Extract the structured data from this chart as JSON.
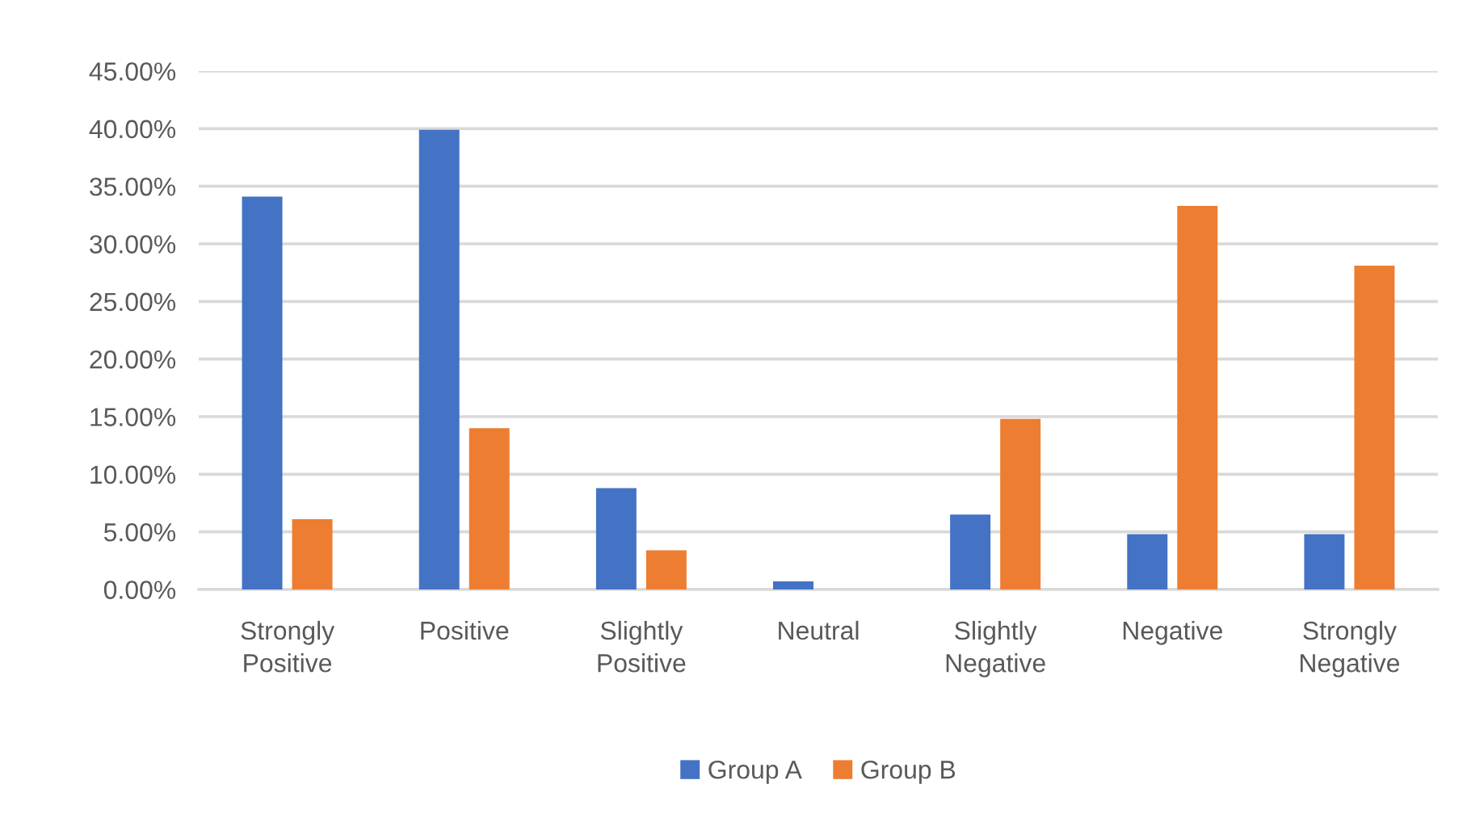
{
  "chart_data": {
    "type": "bar",
    "categories": [
      "Strongly Positive",
      "Positive",
      "Slightly Positive",
      "Neutral",
      "Slightly Negative",
      "Negative",
      "Strongly Negative"
    ],
    "series": [
      {
        "name": "Group A",
        "color": "#4472c4",
        "values": [
          34.1,
          39.9,
          8.8,
          0.7,
          6.5,
          4.8,
          4.8
        ]
      },
      {
        "name": "Group B",
        "color": "#ed7d31",
        "values": [
          6.1,
          14.0,
          3.4,
          0,
          14.8,
          33.3,
          28.1
        ]
      }
    ],
    "ylim": [
      0,
      45
    ],
    "yticks": [
      {
        "value": 0,
        "label": "0.00%"
      },
      {
        "value": 5,
        "label": "5.00%"
      },
      {
        "value": 10,
        "label": "10.00%"
      },
      {
        "value": 15,
        "label": "15.00%"
      },
      {
        "value": 20,
        "label": "20.00%"
      },
      {
        "value": 25,
        "label": "25.00%"
      },
      {
        "value": 30,
        "label": "30.00%"
      },
      {
        "value": 35,
        "label": "35.00%"
      },
      {
        "value": 40,
        "label": "40.00%"
      },
      {
        "value": 45,
        "label": "45.00%"
      }
    ],
    "grid": "y",
    "legend": "bottom"
  }
}
